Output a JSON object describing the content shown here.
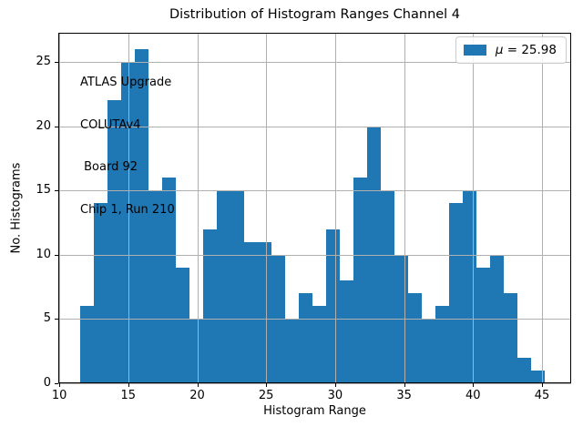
{
  "figure": {
    "title": "Distribution of Histogram Ranges Channel 4",
    "xlabel": "Histogram Range",
    "ylabel": "No. Histograms"
  },
  "legend": {
    "label": "μ = 25.98",
    "symbol": "μ",
    "value_text": "= 25.98"
  },
  "annotation": {
    "lines": [
      "ATLAS Upgrade",
      "COLUTAv4",
      " Board 92",
      "Chip 1, Run 210"
    ]
  },
  "colors": {
    "bar": "#1f77b4",
    "grid": "#b0b0b0",
    "spine": "#000000",
    "text": "#000000"
  },
  "chart_data": {
    "type": "bar",
    "subtype": "histogram",
    "title": "Distribution of Histogram Ranges Channel 4",
    "xlabel": "Histogram Range",
    "ylabel": "No. Histograms",
    "bin_start": 11.5,
    "bin_width": 0.99,
    "values": [
      6,
      14,
      22,
      25,
      26,
      15,
      16,
      9,
      5,
      12,
      15,
      15,
      11,
      11,
      10,
      5,
      7,
      6,
      12,
      8,
      16,
      20,
      15,
      10,
      7,
      5,
      6,
      14,
      15,
      9,
      10,
      7,
      2,
      1
    ],
    "mean": 25.98,
    "xlim": [
      9.93,
      47.11
    ],
    "ylim": [
      0,
      27.27
    ],
    "xticks": [
      10,
      15,
      20,
      25,
      30,
      35,
      40,
      45
    ],
    "yticks": [
      0,
      5,
      10,
      15,
      20,
      25
    ],
    "grid": true,
    "grid_above_bars": true,
    "legend_position": "upper right",
    "legend_entries": [
      "μ = 25.98"
    ]
  }
}
